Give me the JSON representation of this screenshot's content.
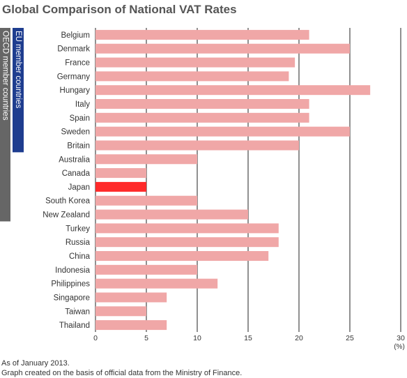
{
  "chart_data": {
    "type": "bar",
    "orientation": "horizontal",
    "title": "Global Comparison of National VAT Rates",
    "categories": [
      "Belgium",
      "Denmark",
      "France",
      "Germany",
      "Hungary",
      "Italy",
      "Spain",
      "Sweden",
      "Britain",
      "Australia",
      "Canada",
      "Japan",
      "South Korea",
      "New Zealand",
      "Turkey",
      "Russia",
      "China",
      "Indonesia",
      "Philippines",
      "Singapore",
      "Taiwan",
      "Thailand"
    ],
    "values": [
      21,
      25,
      19.6,
      19,
      27,
      21,
      21,
      25,
      20,
      10,
      5,
      5,
      10,
      15,
      18,
      18,
      17,
      10,
      12,
      7,
      5,
      7
    ],
    "highlight": "Japan",
    "xlim": [
      0,
      30
    ],
    "xticks": [
      0,
      5,
      10,
      15,
      20,
      25,
      30
    ],
    "xunit": "(%)",
    "grid": true,
    "groups": [
      {
        "label": "EU member countries",
        "first": 0,
        "last": 8,
        "color": "#1e3d8f"
      },
      {
        "label": "OECD member countries",
        "first": 0,
        "last": 13,
        "color": "#666666"
      }
    ],
    "colors": {
      "bar": "#f0a7a7",
      "highlight": "#ff2a2a",
      "grid": "#222222"
    }
  },
  "notes": [
    "As of January 2013.",
    "Graph created on the basis of official data from the Ministry of Finance."
  ]
}
